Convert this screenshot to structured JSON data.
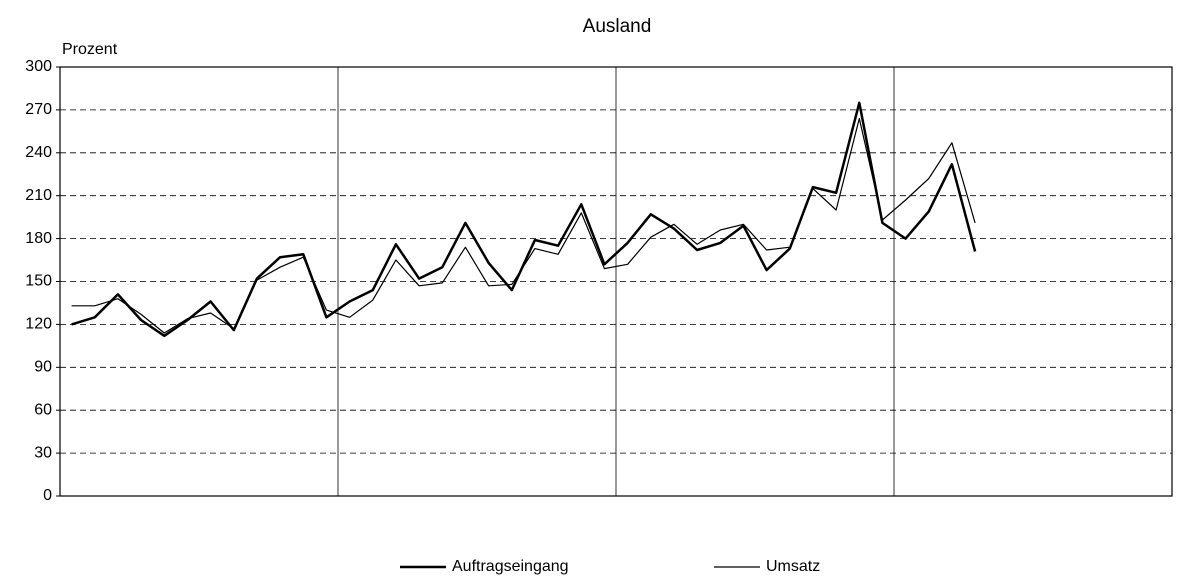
{
  "chart_data": {
    "type": "line",
    "title": "Ausland",
    "y_label": "Prozent",
    "categories": [
      null,
      null,
      null,
      null,
      null,
      null,
      null,
      null,
      null,
      null,
      null,
      null,
      null,
      null,
      null,
      null,
      null,
      null,
      null,
      null,
      null,
      null,
      null,
      null,
      null,
      null,
      null,
      null,
      null,
      null,
      null,
      null,
      null,
      null,
      null,
      null,
      null,
      null,
      null,
      null,
      null,
      null,
      null,
      null,
      null,
      null,
      null,
      null
    ],
    "series": [
      {
        "name": "Auftragseingang",
        "color": "#000000",
        "width": 2.5,
        "values": [
          120,
          125,
          141,
          123,
          112,
          123,
          136,
          116,
          152,
          167,
          169,
          125,
          136,
          144,
          176,
          152,
          160,
          191,
          163,
          144,
          179,
          175,
          204,
          162,
          177,
          197,
          187,
          172,
          177,
          189,
          158,
          173,
          216,
          212,
          275,
          191,
          180,
          199,
          232,
          171,
          null,
          null,
          null,
          null,
          null,
          null,
          null,
          null
        ]
      },
      {
        "name": "Umsatz",
        "color": "#000000",
        "width": 1.2,
        "values": [
          133,
          133,
          138,
          127,
          114,
          124,
          128,
          117,
          151,
          160,
          167,
          130,
          125,
          137,
          165,
          147,
          149,
          174,
          147,
          148,
          173,
          169,
          198,
          159,
          162,
          181,
          190,
          176,
          186,
          190,
          172,
          174,
          215,
          200,
          264,
          193,
          207,
          222,
          247,
          191,
          null,
          null,
          null,
          null,
          null,
          null,
          null,
          null
        ]
      }
    ],
    "ylim": [
      0,
      300
    ],
    "yticks": [
      0,
      30,
      60,
      90,
      120,
      150,
      180,
      210,
      240,
      270,
      300
    ],
    "grid": true
  }
}
